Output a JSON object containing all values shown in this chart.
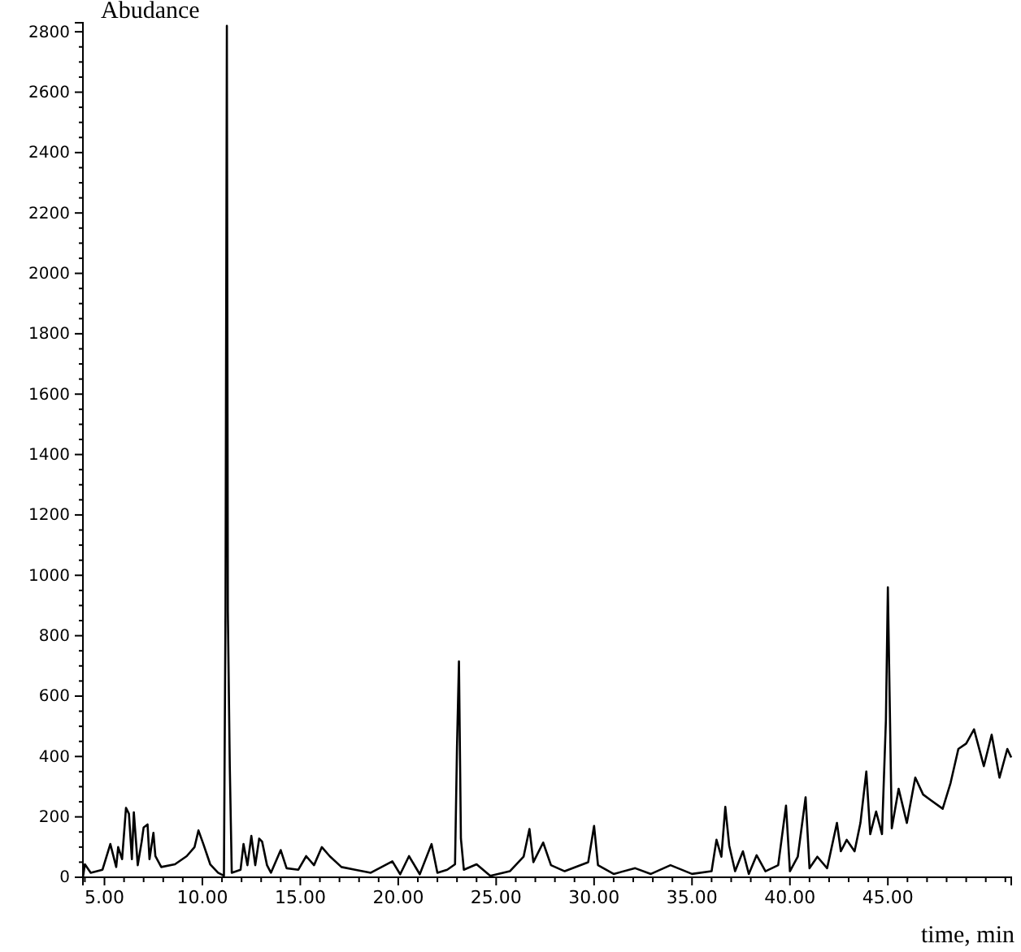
{
  "chart_data": {
    "type": "line",
    "ylabel": "Abudance",
    "xlabel": "time, min",
    "xlim": [
      3.9,
      51.3
    ],
    "ylim": [
      0,
      2830
    ],
    "xticks": [
      {
        "value": 4,
        "label": null
      },
      {
        "value": 5,
        "label": "5.00"
      },
      {
        "value": 6,
        "label": null
      },
      {
        "value": 7,
        "label": null
      },
      {
        "value": 8,
        "label": null
      },
      {
        "value": 9,
        "label": null
      },
      {
        "value": 10,
        "label": "10.00"
      },
      {
        "value": 11,
        "label": null
      },
      {
        "value": 12,
        "label": null
      },
      {
        "value": 13,
        "label": null
      },
      {
        "value": 14,
        "label": null
      },
      {
        "value": 15,
        "label": "15.00"
      },
      {
        "value": 16,
        "label": null
      },
      {
        "value": 17,
        "label": null
      },
      {
        "value": 18,
        "label": null
      },
      {
        "value": 19,
        "label": null
      },
      {
        "value": 20,
        "label": "20.00"
      },
      {
        "value": 21,
        "label": null
      },
      {
        "value": 22,
        "label": null
      },
      {
        "value": 23,
        "label": null
      },
      {
        "value": 24,
        "label": null
      },
      {
        "value": 25,
        "label": "25.00"
      },
      {
        "value": 26,
        "label": null
      },
      {
        "value": 27,
        "label": null
      },
      {
        "value": 28,
        "label": null
      },
      {
        "value": 29,
        "label": null
      },
      {
        "value": 30,
        "label": "30.00"
      },
      {
        "value": 31,
        "label": null
      },
      {
        "value": 32,
        "label": null
      },
      {
        "value": 33,
        "label": null
      },
      {
        "value": 34,
        "label": null
      },
      {
        "value": 35,
        "label": "35.00"
      },
      {
        "value": 36,
        "label": null
      },
      {
        "value": 37,
        "label": null
      },
      {
        "value": 38,
        "label": null
      },
      {
        "value": 39,
        "label": null
      },
      {
        "value": 40,
        "label": "40.00"
      },
      {
        "value": 41,
        "label": null
      },
      {
        "value": 42,
        "label": null
      },
      {
        "value": 43,
        "label": null
      },
      {
        "value": 44,
        "label": null
      },
      {
        "value": 45,
        "label": "45.00"
      },
      {
        "value": 46,
        "label": null
      },
      {
        "value": 47,
        "label": null
      },
      {
        "value": 48,
        "label": null
      },
      {
        "value": 49,
        "label": null
      },
      {
        "value": 50,
        "label": null
      },
      {
        "value": 51,
        "label": null
      }
    ],
    "yticks": [
      0,
      {
        "value": 50,
        "label": null
      },
      {
        "value": 100,
        "label": null
      },
      {
        "value": 150,
        "label": null
      },
      200,
      {
        "value": 250,
        "label": null
      },
      {
        "value": 300,
        "label": null
      },
      {
        "value": 350,
        "label": null
      },
      400,
      {
        "value": 450,
        "label": null
      },
      {
        "value": 500,
        "label": null
      },
      {
        "value": 550,
        "label": null
      },
      600,
      {
        "value": 650,
        "label": null
      },
      {
        "value": 700,
        "label": null
      },
      {
        "value": 750,
        "label": null
      },
      800,
      {
        "value": 850,
        "label": null
      },
      {
        "value": 900,
        "label": null
      },
      {
        "value": 950,
        "label": null
      },
      1000,
      {
        "value": 1050,
        "label": null
      },
      {
        "value": 1100,
        "label": null
      },
      {
        "value": 1150,
        "label": null
      },
      1200,
      {
        "value": 1250,
        "label": null
      },
      {
        "value": 1300,
        "label": null
      },
      {
        "value": 1350,
        "label": null
      },
      1400,
      {
        "value": 1450,
        "label": null
      },
      {
        "value": 1500,
        "label": null
      },
      {
        "value": 1550,
        "label": null
      },
      1600,
      {
        "value": 1650,
        "label": null
      },
      {
        "value": 1700,
        "label": null
      },
      {
        "value": 1750,
        "label": null
      },
      1800,
      {
        "value": 1850,
        "label": null
      },
      {
        "value": 1900,
        "label": null
      },
      {
        "value": 1950,
        "label": null
      },
      2000,
      {
        "value": 2050,
        "label": null
      },
      {
        "value": 2100,
        "label": null
      },
      {
        "value": 2150,
        "label": null
      },
      2200,
      {
        "value": 2250,
        "label": null
      },
      {
        "value": 2300,
        "label": null
      },
      {
        "value": 2350,
        "label": null
      },
      2400,
      {
        "value": 2450,
        "label": null
      },
      {
        "value": 2500,
        "label": null
      },
      {
        "value": 2550,
        "label": null
      },
      2600,
      {
        "value": 2650,
        "label": null
      },
      {
        "value": 2700,
        "label": null
      },
      {
        "value": 2750,
        "label": null
      },
      2800
    ],
    "grid": false,
    "marker": "none",
    "line_style": "solid",
    "series": [
      {
        "color": "#000000",
        "x": [
          3.9,
          4.0,
          4.3,
          4.9,
          5.3,
          5.6,
          5.7,
          5.9,
          6.1,
          6.25,
          6.4,
          6.5,
          6.7,
          6.9,
          7.0,
          7.2,
          7.3,
          7.5,
          7.6,
          7.9,
          8.6,
          9.2,
          9.6,
          9.8,
          10.05,
          10.4,
          10.8,
          11.1,
          11.18,
          11.25,
          11.3,
          11.4,
          11.5,
          11.95,
          12.1,
          12.3,
          12.5,
          12.7,
          12.9,
          13.05,
          13.3,
          13.5,
          14.0,
          14.3,
          14.9,
          15.3,
          15.7,
          16.1,
          16.5,
          17.1,
          17.8,
          18.6,
          19.7,
          20.1,
          20.55,
          21.1,
          21.7,
          22.0,
          22.5,
          22.9,
          23.0,
          23.1,
          23.2,
          23.35,
          24.0,
          24.7,
          25.7,
          26.4,
          26.7,
          26.9,
          27.4,
          27.8,
          28.5,
          29.7,
          30.0,
          30.2,
          31.0,
          32.1,
          32.9,
          33.9,
          35.0,
          36.0,
          36.25,
          36.5,
          36.7,
          36.9,
          37.2,
          37.6,
          37.9,
          38.3,
          38.75,
          39.4,
          39.8,
          40.0,
          40.4,
          40.8,
          41.0,
          41.4,
          41.9,
          42.4,
          42.6,
          42.9,
          43.3,
          43.6,
          43.9,
          44.1,
          44.4,
          44.7,
          44.9,
          45.0,
          45.2,
          45.55,
          45.97,
          46.4,
          46.8,
          47.2,
          47.8,
          48.2,
          48.6,
          49.0,
          49.4,
          49.9,
          50.3,
          50.7,
          51.1,
          51.3
        ],
        "values": [
          0,
          43,
          15,
          25,
          110,
          34,
          100,
          60,
          230,
          210,
          60,
          215,
          40,
          118,
          165,
          175,
          60,
          147,
          70,
          34,
          43,
          70,
          100,
          155,
          110,
          43,
          15,
          5,
          880,
          2820,
          880,
          365,
          15,
          25,
          110,
          40,
          137,
          40,
          128,
          118,
          40,
          15,
          90,
          30,
          25,
          70,
          40,
          100,
          70,
          34,
          25,
          15,
          53,
          10,
          70,
          10,
          110,
          15,
          25,
          43,
          430,
          715,
          128,
          25,
          43,
          5,
          20,
          68,
          160,
          50,
          115,
          40,
          20,
          50,
          170,
          40,
          11,
          30,
          11,
          40,
          11,
          20,
          124,
          68,
          233,
          105,
          20,
          86,
          11,
          73,
          20,
          40,
          237,
          20,
          68,
          265,
          30,
          68,
          30,
          180,
          86,
          124,
          86,
          180,
          350,
          143,
          218,
          143,
          519,
          960,
          162,
          293,
          180,
          330,
          274,
          255,
          227,
          312,
          425,
          443,
          490,
          368,
          472,
          330,
          425,
          397
        ]
      }
    ]
  }
}
